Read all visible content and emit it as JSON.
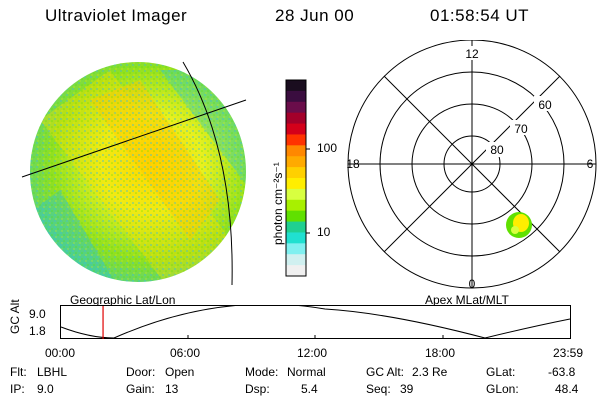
{
  "header": {
    "title": "Ultraviolet Imager",
    "date": "28 Jun 00",
    "time": "01:58:54 UT"
  },
  "colorbar": {
    "unit_label": "photon cm⁻²s⁻¹",
    "ticks": [
      "100",
      "10"
    ],
    "colors": [
      "#1a0d1f",
      "#3a0d3f",
      "#6a0d4a",
      "#a3002a",
      "#d4001a",
      "#ff3300",
      "#ff8800",
      "#ffaa00",
      "#ffd000",
      "#ffee00",
      "#d8ff40",
      "#a8f000",
      "#60e000",
      "#20d090",
      "#20e0d0",
      "#80f0f0",
      "#d0f0f0",
      "#f0f0f0"
    ]
  },
  "polar_plot": {
    "mlt_labels": [
      "12",
      "18",
      "6",
      "0"
    ],
    "mlat_labels": [
      "60",
      "70",
      "80"
    ]
  },
  "timeline": {
    "axis_label": "GC Alt",
    "y_labels": [
      "9.0",
      "1.8"
    ],
    "left_caption": "Geographic Lat/Lon",
    "right_caption": "Apex MLat/MLT",
    "x_labels": [
      "00:00",
      "06:00",
      "12:00",
      "18:00",
      "23:59"
    ],
    "current_time_fraction": 0.0826
  },
  "info": {
    "flt": {
      "label": "Flt:",
      "value": "LBHL"
    },
    "ip": {
      "label": "IP:",
      "value": "9.0"
    },
    "door": {
      "label": "Door:",
      "value": "Open"
    },
    "gain": {
      "label": "Gain:",
      "value": "13"
    },
    "mode": {
      "label": "Mode:",
      "value": "Normal"
    },
    "dsp": {
      "label": "Dsp:",
      "value": "5.4"
    },
    "gcalt": {
      "label": "GC Alt:",
      "value": "2.3 Re"
    },
    "seq": {
      "label": "Seq:",
      "value": "39"
    },
    "glat": {
      "label": "GLat:",
      "value": "-63.8"
    },
    "glon": {
      "label": "GLon:",
      "value": "48.4"
    }
  }
}
